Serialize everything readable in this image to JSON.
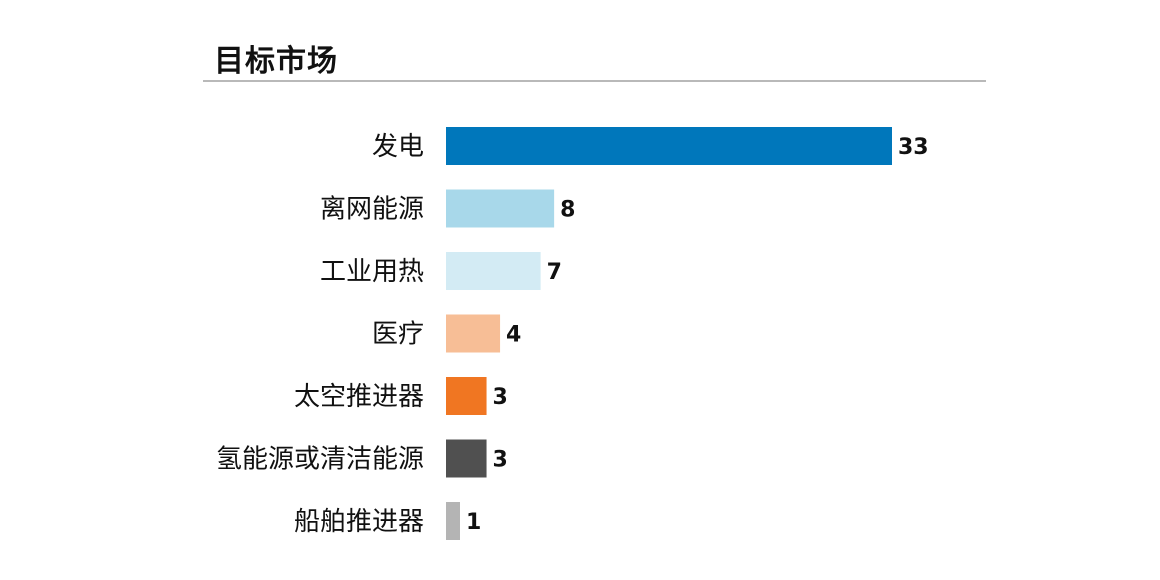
{
  "title": "目标市场",
  "chart_data": {
    "type": "bar",
    "orientation": "horizontal",
    "categories": [
      "发电",
      "离网能源",
      "工业用热",
      "医疗",
      "太空推进器",
      "氢能源或清洁能源",
      "船舶推进器"
    ],
    "values": [
      33,
      8,
      7,
      4,
      3,
      3,
      1
    ],
    "colors": [
      "#0077bb",
      "#a8d8ea",
      "#d3ebf4",
      "#f7be96",
      "#f07622",
      "#505050",
      "#b4b4b4"
    ],
    "title": "目标市场",
    "xlabel": "",
    "ylabel": "",
    "xlim": [
      0,
      33
    ],
    "data_labels": true,
    "grid": false,
    "legend": "none"
  }
}
